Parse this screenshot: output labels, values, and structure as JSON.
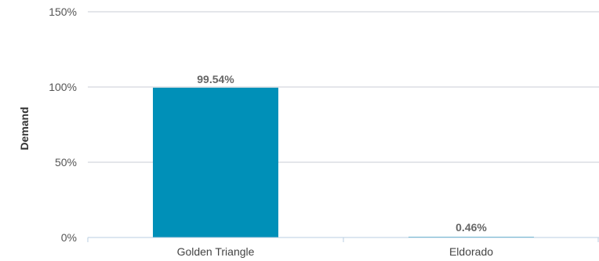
{
  "chart_data": {
    "type": "bar",
    "title": "",
    "xlabel": "",
    "ylabel": "Demand",
    "categories": [
      "Golden Triangle",
      "Eldorado"
    ],
    "values": [
      99.54,
      0.46
    ],
    "value_labels": [
      "99.54%",
      "0.46%"
    ],
    "ylim": [
      0,
      150
    ],
    "yticks": [
      0,
      50,
      100,
      150
    ],
    "ytick_labels": [
      "0%",
      "50%",
      "100%",
      "150%"
    ],
    "grid": true,
    "legend": "none",
    "bar_color": "#0090b8",
    "grid_color": "#c8cdd4",
    "baseline_color": "#b8cde0"
  }
}
